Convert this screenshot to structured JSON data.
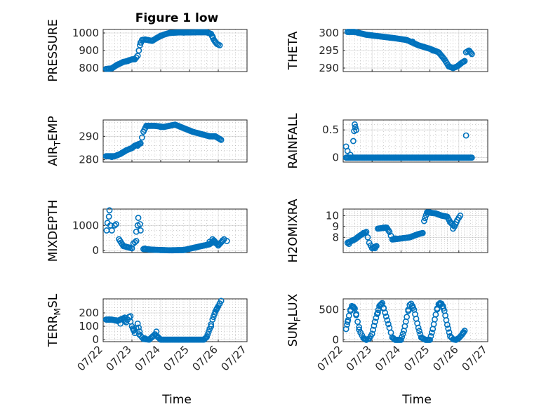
{
  "figure": {
    "title": "Figure 1 low",
    "marker_color": "#0072bd"
  },
  "chart_data": [
    {
      "type": "scatter",
      "ylabel": "PRESSURE",
      "ylim": [
        780,
        1020
      ],
      "yticks": [
        800,
        900,
        1000
      ],
      "xlim": [
        0,
        5
      ],
      "xticks": [
        "07/22",
        "07/23",
        "07/24",
        "07/25",
        "07/26",
        "07/27"
      ],
      "show_xticklabels": false,
      "grid": true,
      "segments": [
        [
          0.1,
          795
        ],
        [
          0.3,
          798
        ],
        [
          0.45,
          815
        ],
        [
          0.7,
          835
        ],
        [
          0.85,
          840
        ],
        [
          1.0,
          850
        ],
        [
          1.1,
          850
        ],
        [
          1.2,
          870
        ],
        [
          1.28,
          930
        ],
        [
          1.35,
          960
        ],
        [
          1.45,
          963
        ],
        [
          1.7,
          955
        ],
        [
          1.9,
          975
        ],
        [
          2.1,
          990
        ],
        [
          2.3,
          1000
        ],
        [
          2.6,
          1003
        ],
        [
          3.0,
          1003
        ],
        [
          3.3,
          1004
        ],
        [
          3.6,
          1004
        ],
        [
          3.75,
          995
        ],
        [
          3.85,
          960
        ],
        [
          3.95,
          938
        ],
        [
          4.05,
          930
        ]
      ],
      "points": [
        [
          0.2,
          795
        ],
        [
          0.5,
          820
        ],
        [
          0.9,
          845
        ],
        [
          1.3,
          945
        ],
        [
          2.0,
          985
        ],
        [
          2.8,
          1002
        ],
        [
          3.8,
          980
        ]
      ]
    },
    {
      "type": "scatter",
      "ylabel": "THETA",
      "ylim": [
        289,
        301
      ],
      "yticks": [
        290,
        295,
        300
      ],
      "xlim": [
        0,
        5
      ],
      "xticks": [
        "07/22",
        "07/23",
        "07/24",
        "07/25",
        "07/26",
        "07/27"
      ],
      "show_xticklabels": false,
      "grid": true,
      "segments": [
        [
          0.15,
          300.3
        ],
        [
          0.4,
          300.3
        ],
        [
          0.8,
          299.5
        ],
        [
          1.3,
          299
        ],
        [
          1.8,
          298.5
        ],
        [
          2.2,
          298
        ],
        [
          2.6,
          296.5
        ],
        [
          3.0,
          295.5
        ],
        [
          3.3,
          294.5
        ],
        [
          3.5,
          292.5
        ],
        [
          3.65,
          290.5
        ],
        [
          3.8,
          290
        ],
        [
          3.95,
          290.5
        ],
        [
          4.1,
          291.5
        ],
        [
          4.2,
          292
        ],
        [
          4.25,
          294.5
        ],
        [
          4.35,
          295
        ],
        [
          4.45,
          294
        ]
      ],
      "points": [
        [
          1.0,
          299.3
        ],
        [
          2.4,
          297.5
        ],
        [
          3.1,
          295
        ]
      ]
    },
    {
      "type": "scatter",
      "ylabel": "AIR_TEMP",
      "ylabel_sub": "T",
      "ylabel_pre": "AIR",
      "ylabel_post": "EMP",
      "ylim": [
        279,
        297
      ],
      "yticks": [
        280,
        290
      ],
      "xlim": [
        0,
        5
      ],
      "xticks": [
        "07/22",
        "07/23",
        "07/24",
        "07/25",
        "07/26",
        "07/27"
      ],
      "show_xticklabels": false,
      "grid": true,
      "segments": [
        [
          0.1,
          281.5
        ],
        [
          0.4,
          281.5
        ],
        [
          0.6,
          282.5
        ],
        [
          0.8,
          284
        ],
        [
          1.0,
          285
        ],
        [
          1.1,
          286
        ],
        [
          1.3,
          287
        ],
        [
          1.4,
          292
        ],
        [
          1.5,
          294.5
        ],
        [
          1.8,
          294.5
        ],
        [
          2.1,
          294
        ],
        [
          2.5,
          295
        ],
        [
          2.8,
          293.5
        ],
        [
          3.1,
          292
        ],
        [
          3.4,
          291
        ],
        [
          3.7,
          290
        ],
        [
          3.9,
          290
        ],
        [
          4.1,
          288.5
        ]
      ],
      "points": [
        [
          0.3,
          281.2
        ],
        [
          1.2,
          286
        ],
        [
          2.0,
          294
        ],
        [
          3.0,
          292.5
        ]
      ]
    },
    {
      "type": "scatter",
      "ylabel": "RAINFALL",
      "ylim": [
        -0.08,
        0.68
      ],
      "yticks": [
        0,
        0.5
      ],
      "ytick_labels": [
        "0",
        "0.5"
      ],
      "xlim": [
        0,
        5
      ],
      "xticks": [
        "07/22",
        "07/23",
        "07/24",
        "07/25",
        "07/26",
        "07/27"
      ],
      "show_xticklabels": false,
      "grid": true,
      "segments": [
        [
          0.1,
          0
        ],
        [
          4.45,
          0
        ]
      ],
      "points": [
        [
          0.1,
          0.2
        ],
        [
          0.15,
          0.12
        ],
        [
          0.25,
          0.05
        ],
        [
          0.35,
          0.3
        ],
        [
          0.38,
          0.48
        ],
        [
          0.4,
          0.6
        ],
        [
          0.42,
          0.55
        ],
        [
          0.45,
          0.5
        ],
        [
          4.25,
          0.4
        ]
      ]
    },
    {
      "type": "scatter",
      "ylabel": "MIXDEPTH",
      "ylim": [
        -80,
        1650
      ],
      "yticks": [
        0,
        1000
      ],
      "xlim": [
        0,
        5
      ],
      "xticks": [
        "07/22",
        "07/23",
        "07/24",
        "07/25",
        "07/26",
        "07/27"
      ],
      "show_xticklabels": false,
      "grid": true,
      "segments": [
        [
          0.55,
          450
        ],
        [
          0.7,
          180
        ],
        [
          0.9,
          120
        ],
        [
          1.0,
          90
        ],
        [
          1.05,
          280
        ],
        [
          1.15,
          380
        ]
      ],
      "points": [
        [
          0.12,
          800
        ],
        [
          0.15,
          1100
        ],
        [
          0.2,
          1350
        ],
        [
          0.22,
          1600
        ],
        [
          0.25,
          1000
        ],
        [
          0.3,
          800
        ],
        [
          0.4,
          1000
        ],
        [
          0.45,
          1050
        ],
        [
          1.15,
          750
        ],
        [
          1.2,
          1000
        ],
        [
          1.22,
          1300
        ],
        [
          1.28,
          1050
        ],
        [
          1.3,
          800
        ],
        [
          1.45,
          80
        ],
        [
          1.6,
          40
        ],
        [
          2.0,
          20
        ],
        [
          2.4,
          10
        ],
        [
          2.8,
          30
        ],
        [
          3.2,
          120
        ],
        [
          3.5,
          200
        ],
        [
          3.7,
          350
        ],
        [
          3.8,
          450
        ],
        [
          3.9,
          300
        ],
        [
          4.0,
          250
        ],
        [
          4.15,
          400
        ],
        [
          4.3,
          380
        ]
      ],
      "extra_segments": [
        [
          1.4,
          60
        ],
        [
          1.8,
          30
        ],
        [
          2.3,
          10
        ],
        [
          2.8,
          20
        ],
        [
          3.3,
          150
        ],
        [
          3.7,
          250
        ],
        [
          3.85,
          400
        ],
        [
          4.0,
          200
        ],
        [
          4.2,
          450
        ]
      ]
    },
    {
      "type": "scatter",
      "ylabel": "H2OMIXRA",
      "ylim": [
        6.6,
        10.6
      ],
      "yticks": [
        8,
        9,
        10
      ],
      "xlim": [
        0,
        5
      ],
      "xticks": [
        "07/22",
        "07/23",
        "07/24",
        "07/25",
        "07/26",
        "07/27"
      ],
      "show_xticklabels": false,
      "grid": true,
      "segments": [
        [
          0.15,
          7.5
        ],
        [
          0.4,
          7.8
        ],
        [
          0.6,
          8.2
        ],
        [
          0.8,
          8.5
        ],
        [
          0.9,
          7.5
        ],
        [
          1.0,
          7.0
        ],
        [
          1.15,
          7.2
        ],
        [
          1.2,
          8.8
        ],
        [
          1.5,
          8.9
        ],
        [
          1.6,
          8.5
        ],
        [
          1.7,
          7.8
        ],
        [
          2.0,
          7.9
        ],
        [
          2.3,
          8.0
        ],
        [
          2.6,
          8.3
        ],
        [
          2.75,
          8.4
        ],
        [
          2.8,
          9.5
        ],
        [
          2.9,
          10.3
        ],
        [
          3.2,
          10.2
        ],
        [
          3.4,
          10.0
        ],
        [
          3.6,
          9.9
        ],
        [
          3.7,
          9.4
        ],
        [
          3.85,
          9.0
        ],
        [
          3.95,
          9.6
        ],
        [
          4.05,
          10.0
        ]
      ],
      "points": [
        [
          0.2,
          7.4
        ],
        [
          0.3,
          7.7
        ],
        [
          0.5,
          8.0
        ],
        [
          0.7,
          8.4
        ],
        [
          1.1,
          7.0
        ],
        [
          1.4,
          8.9
        ],
        [
          1.8,
          7.9
        ],
        [
          2.5,
          8.2
        ],
        [
          3.0,
          10.3
        ],
        [
          3.3,
          10.1
        ],
        [
          3.8,
          8.8
        ]
      ]
    },
    {
      "type": "scatter",
      "ylabel": "TERR_MSL",
      "ylabel_pre": "TERR",
      "ylabel_sub": "M",
      "ylabel_post": "SL",
      "ylim": [
        -15,
        305
      ],
      "yticks": [
        0,
        100,
        200
      ],
      "xlim": [
        0,
        5
      ],
      "xticks": [
        "07/22",
        "07/23",
        "07/24",
        "07/25",
        "07/26",
        "07/27"
      ],
      "show_xticklabels": true,
      "grid": true,
      "segments": [
        [
          0.1,
          150
        ],
        [
          0.3,
          150
        ],
        [
          0.5,
          140
        ],
        [
          0.7,
          160
        ],
        [
          0.8,
          130
        ],
        [
          0.9,
          170
        ],
        [
          1.0,
          100
        ],
        [
          1.1,
          50
        ],
        [
          1.2,
          120
        ],
        [
          1.3,
          30
        ],
        [
          1.4,
          5
        ],
        [
          1.6,
          0
        ],
        [
          1.8,
          40
        ],
        [
          1.9,
          20
        ],
        [
          2.0,
          0
        ],
        [
          3.5,
          0
        ],
        [
          3.6,
          20
        ],
        [
          3.7,
          80
        ],
        [
          3.8,
          150
        ],
        [
          3.9,
          210
        ],
        [
          4.0,
          250
        ],
        [
          4.1,
          290
        ]
      ],
      "points": [
        [
          0.2,
          150
        ],
        [
          0.45,
          145
        ],
        [
          0.6,
          120
        ],
        [
          0.75,
          165
        ],
        [
          0.95,
          175
        ],
        [
          1.05,
          75
        ],
        [
          1.25,
          40
        ],
        [
          1.45,
          10
        ],
        [
          1.7,
          20
        ],
        [
          1.85,
          60
        ],
        [
          3.75,
          100
        ],
        [
          3.95,
          230
        ],
        [
          4.05,
          270
        ]
      ]
    },
    {
      "type": "scatter",
      "ylabel": "SUN_FLUX",
      "ylabel_pre": "SUN",
      "ylabel_sub": "F",
      "ylabel_post": "LUX",
      "ylim": [
        -30,
        680
      ],
      "yticks": [
        0,
        500
      ],
      "xlim": [
        0,
        5
      ],
      "xticks": [
        "07/22",
        "07/23",
        "07/24",
        "07/25",
        "07/26",
        "07/27"
      ],
      "show_xticklabels": true,
      "grid": true,
      "segments": [
        [
          0.1,
          180
        ],
        [
          0.2,
          400
        ],
        [
          0.3,
          560
        ],
        [
          0.4,
          520
        ],
        [
          0.5,
          300
        ],
        [
          0.6,
          120
        ],
        [
          0.7,
          30
        ],
        [
          0.8,
          0
        ],
        [
          0.9,
          20
        ],
        [
          1.0,
          100
        ],
        [
          1.1,
          300
        ],
        [
          1.25,
          560
        ],
        [
          1.35,
          610
        ],
        [
          1.45,
          450
        ],
        [
          1.6,
          200
        ],
        [
          1.7,
          40
        ],
        [
          1.8,
          0
        ],
        [
          2.0,
          0
        ],
        [
          2.1,
          150
        ],
        [
          2.2,
          380
        ],
        [
          2.3,
          580
        ],
        [
          2.35,
          600
        ],
        [
          2.45,
          500
        ],
        [
          2.6,
          200
        ],
        [
          2.7,
          40
        ],
        [
          2.85,
          0
        ],
        [
          3.0,
          0
        ],
        [
          3.1,
          180
        ],
        [
          3.2,
          420
        ],
        [
          3.3,
          590
        ],
        [
          3.4,
          600
        ],
        [
          3.5,
          480
        ],
        [
          3.6,
          250
        ],
        [
          3.7,
          60
        ],
        [
          3.8,
          10
        ],
        [
          3.9,
          0
        ],
        [
          4.0,
          30
        ],
        [
          4.1,
          80
        ],
        [
          4.2,
          150
        ]
      ],
      "points": [
        [
          0.15,
          300
        ],
        [
          0.25,
          500
        ],
        [
          0.35,
          550
        ],
        [
          0.45,
          430
        ],
        [
          0.55,
          170
        ],
        [
          1.2,
          450
        ],
        [
          1.3,
          580
        ],
        [
          1.4,
          520
        ],
        [
          2.25,
          500
        ],
        [
          2.4,
          560
        ],
        [
          3.25,
          520
        ],
        [
          3.35,
          610
        ],
        [
          3.45,
          560
        ],
        [
          4.15,
          120
        ]
      ]
    }
  ],
  "bottom_xlabels": [
    "Time",
    "Time"
  ]
}
